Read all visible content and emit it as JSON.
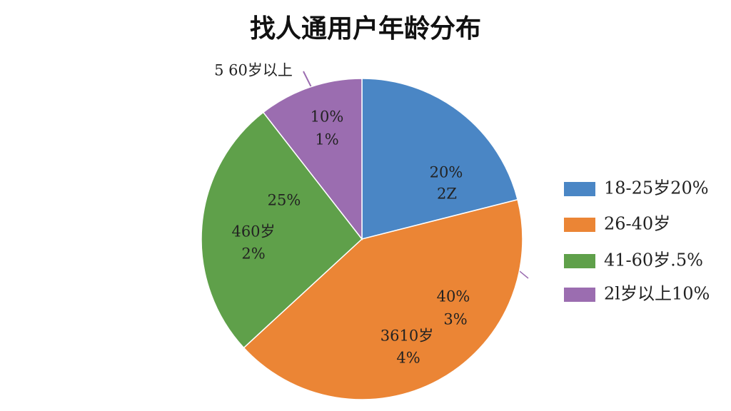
{
  "chart_data": {
    "type": "pie",
    "title": "找人通用户年龄分布",
    "categories": [
      "18-25岁20%",
      "26-40岁",
      "41-60岁.5%",
      "2l岁以上10%"
    ],
    "values": [
      20,
      40,
      25,
      10
    ],
    "value_labels": [
      "20%",
      "40%",
      "25%",
      "10%"
    ],
    "colors": [
      "#4a86c5",
      "#eb8535",
      "#5fa04a",
      "#9b6db0"
    ],
    "annotations": [
      "2Z",
      "3%",
      "3610岁",
      "4%",
      "460岁",
      "2%",
      "1%",
      "5  60岁以上"
    ],
    "legend": "right"
  }
}
